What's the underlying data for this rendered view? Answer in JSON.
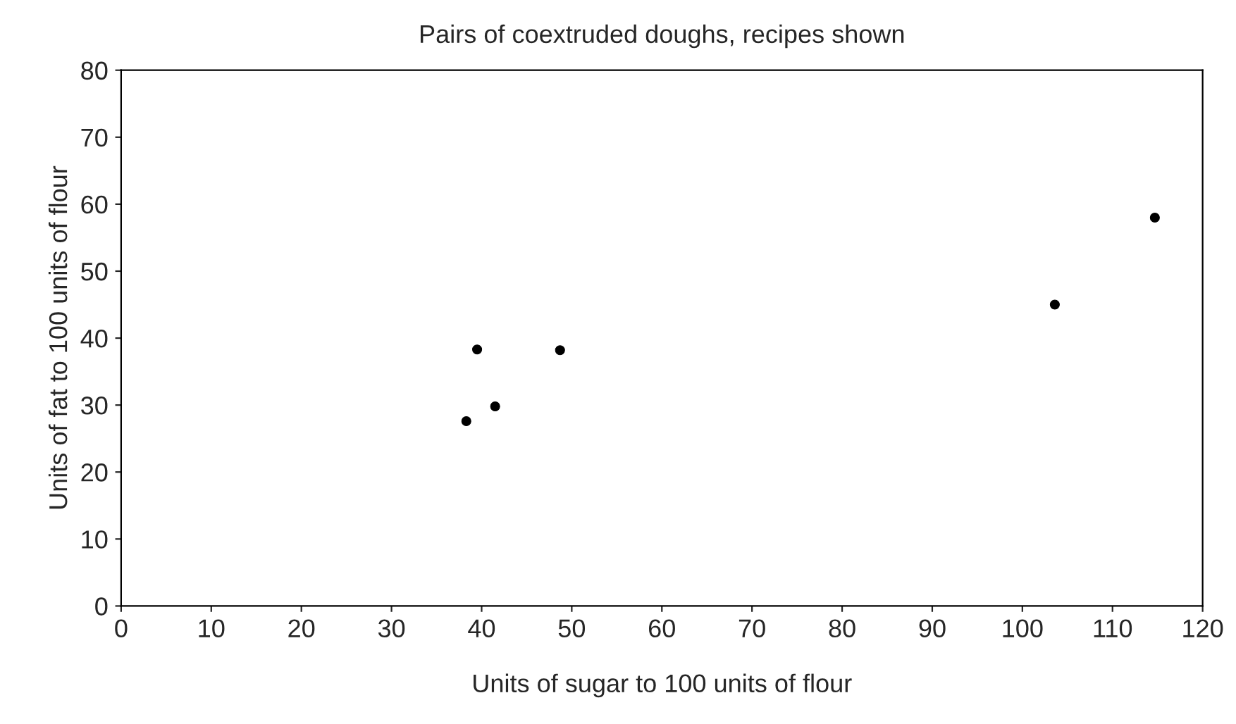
{
  "chart_data": {
    "type": "scatter",
    "title": "Pairs of coextruded doughs, recipes shown",
    "xlabel": "Units of sugar to 100 units of flour",
    "ylabel": "Units of fat to 100 units of flour",
    "x": [
      38.3,
      39.5,
      41.5,
      48.7,
      103.6,
      114.7
    ],
    "values": [
      27.6,
      38.3,
      29.8,
      38.2,
      45,
      58
    ],
    "color": "#000000",
    "marker": "circle",
    "xlim": [
      0,
      120
    ],
    "xticks": [
      0,
      10,
      20,
      30,
      40,
      50,
      60,
      70,
      80,
      90,
      100,
      110,
      120
    ],
    "ylim": [
      0,
      80
    ],
    "yticks": [
      0,
      10,
      20,
      30,
      40,
      50,
      60,
      70,
      80
    ],
    "grid": false,
    "legend": false
  }
}
